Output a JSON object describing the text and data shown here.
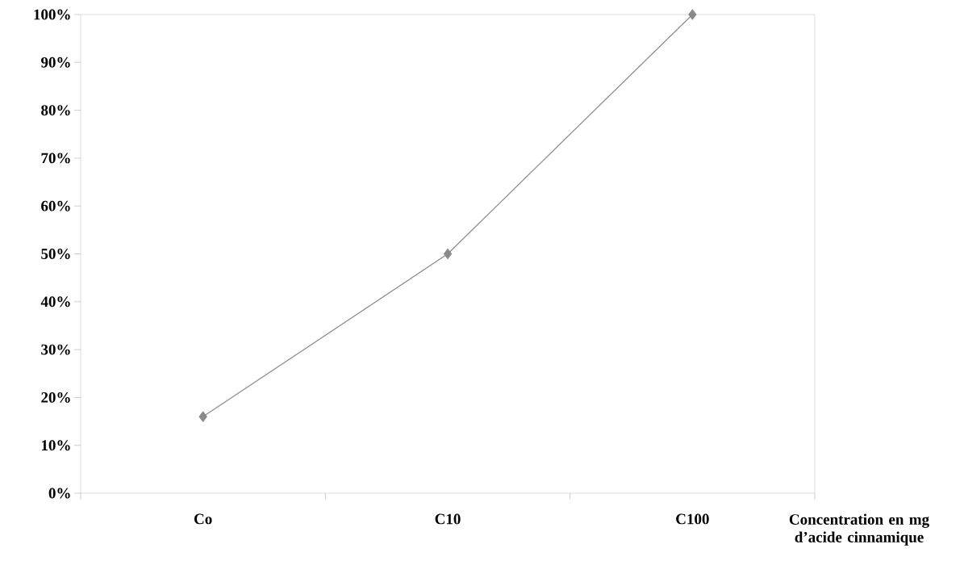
{
  "chart_data": {
    "type": "line",
    "xlabel": "Concentration en mg d’acide cinnamique",
    "categories": [
      "Co",
      "C10",
      "C100"
    ],
    "series": [
      {
        "color": "#8a8a8a",
        "values": [
          16,
          50,
          100
        ]
      }
    ],
    "ylim": [
      0,
      100
    ],
    "yticks": [
      {
        "value": 0,
        "label": "0%"
      },
      {
        "value": 10,
        "label": "10%"
      },
      {
        "value": 20,
        "label": "20%"
      },
      {
        "value": 30,
        "label": "30%"
      },
      {
        "value": 40,
        "label": "40%"
      },
      {
        "value": 50,
        "label": "50%"
      },
      {
        "value": 60,
        "label": "60%"
      },
      {
        "value": 70,
        "label": "70%"
      },
      {
        "value": 80,
        "label": "80%"
      },
      {
        "value": 90,
        "label": "90%"
      },
      {
        "value": 100,
        "label": "100%"
      }
    ],
    "marker": "diamond",
    "grid": false
  }
}
